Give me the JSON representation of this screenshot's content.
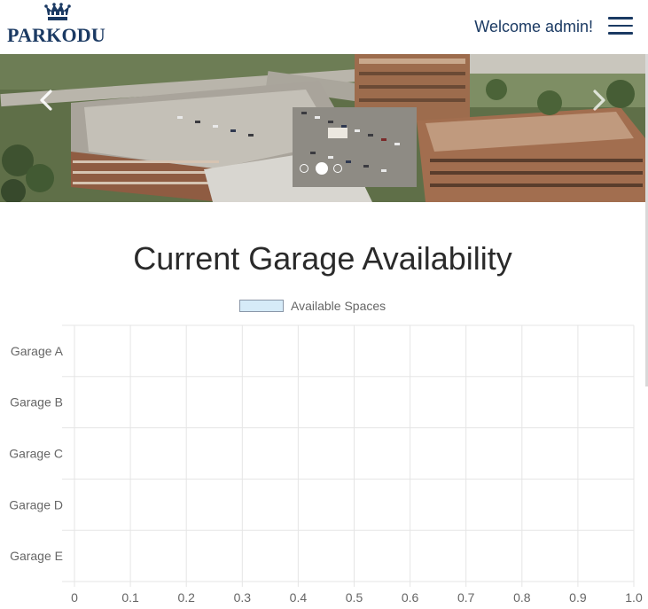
{
  "navbar": {
    "logo_text": "PARKODU",
    "logo_icon": "crown-icon",
    "welcome_text": "Welcome admin!",
    "menu_icon": "hamburger-menu-icon"
  },
  "carousel": {
    "prev_icon": "chevron-left-icon",
    "next_icon": "chevron-right-icon",
    "slide_count": 3,
    "active_slide": 2
  },
  "main": {
    "title": "Current Garage Availability"
  },
  "chart_data": {
    "type": "bar",
    "orientation": "horizontal",
    "categories": [
      "Garage A",
      "Garage B",
      "Garage C",
      "Garage D",
      "Garage E"
    ],
    "series": [
      {
        "name": "Available Spaces",
        "values": [
          0,
          0,
          0,
          0,
          0
        ],
        "color": "#d6ebf8",
        "border_color": "#8a97a8"
      }
    ],
    "xlim": [
      0,
      1
    ],
    "x_ticks": [
      "0",
      "0.1",
      "0.2",
      "0.3",
      "0.4",
      "0.5",
      "0.6",
      "0.7",
      "0.8",
      "0.9",
      "1.0"
    ],
    "grid": true,
    "legend_position": "top"
  }
}
